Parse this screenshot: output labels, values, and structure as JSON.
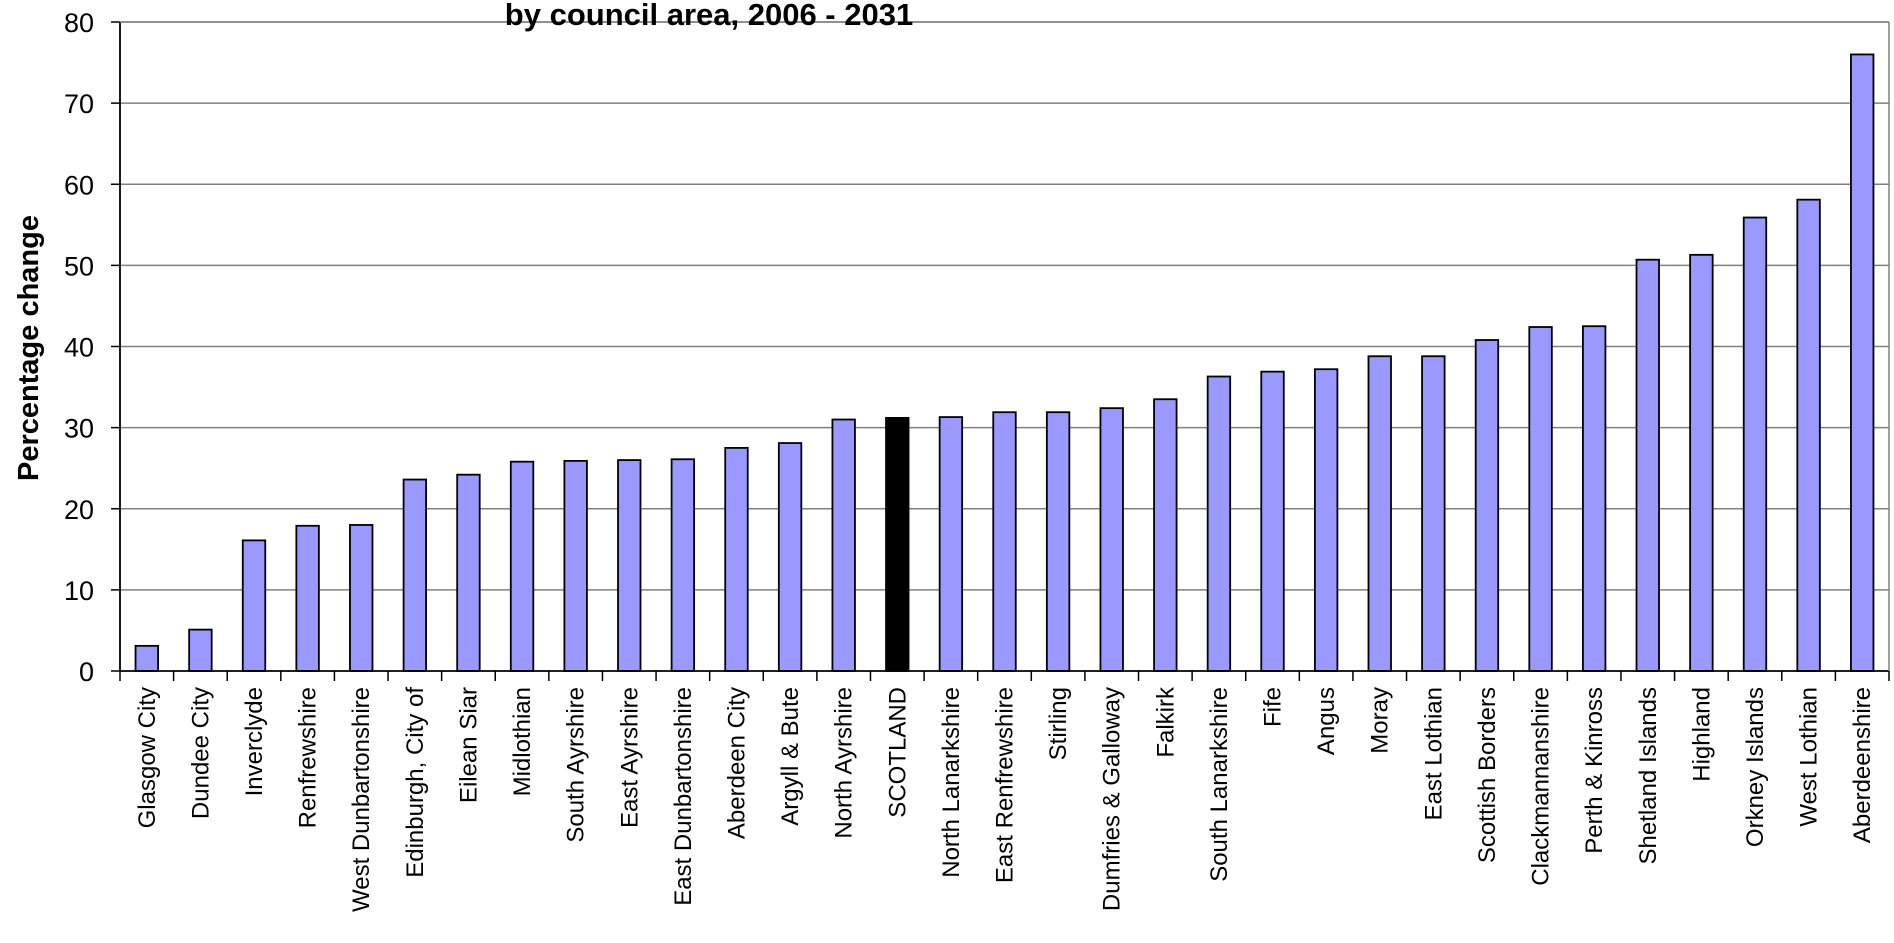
{
  "chart_data": {
    "type": "bar",
    "title": "by council area, 2006 - 2031",
    "xlabel": "",
    "ylabel": "Percentage change",
    "ylim": [
      0,
      80
    ],
    "yticks": [
      0,
      10,
      20,
      30,
      40,
      50,
      60,
      70,
      80
    ],
    "grid": true,
    "legend": "none",
    "colors": {
      "bar": "#9999ff",
      "highlight": "#000000",
      "outline": "#000000",
      "grid": "#808080"
    },
    "highlight_category": "SCOTLAND",
    "categories": [
      "Glasgow City",
      "Dundee City",
      "Inverclyde",
      "Renfrewshire",
      "West Dunbartonshire",
      "Edinburgh, City of",
      "Eilean Siar",
      "Midlothian",
      "South Ayrshire",
      "East Ayrshire",
      "East Dunbartonshire",
      "Aberdeen City",
      "Argyll & Bute",
      "North Ayrshire",
      "SCOTLAND",
      "North Lanarkshire",
      "East Renfrewshire",
      "Stirling",
      "Dumfries & Galloway",
      "Falkirk",
      "South Lanarkshire",
      "Fife",
      "Angus",
      "Moray",
      "East Lothian",
      "Scottish Borders",
      "Clackmannanshire",
      "Perth & Kinross",
      "Shetland Islands",
      "Highland",
      "Orkney Islands",
      "West Lothian",
      "Aberdeenshire"
    ],
    "values": [
      3.1,
      5.1,
      16.1,
      17.9,
      18.0,
      23.6,
      24.2,
      25.8,
      25.9,
      26.0,
      26.1,
      27.5,
      28.1,
      31.0,
      31.2,
      31.3,
      31.9,
      31.9,
      32.4,
      33.5,
      36.3,
      36.9,
      37.2,
      38.8,
      38.8,
      40.8,
      42.4,
      42.5,
      50.7,
      51.3,
      55.9,
      58.1,
      76.0
    ]
  }
}
